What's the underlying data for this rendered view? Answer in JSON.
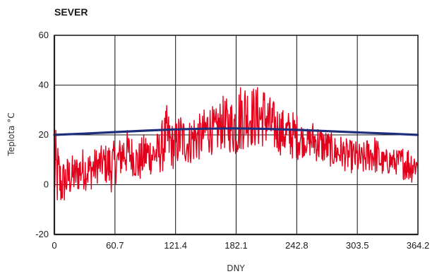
{
  "chart_data": {
    "type": "line",
    "title": "SEVER",
    "xlabel": "DNY",
    "ylabel": "Teplota °C",
    "xlim": [
      0,
      364.2
    ],
    "ylim": [
      -20,
      60
    ],
    "x_ticks": [
      "0",
      "60.7",
      "121.4",
      "182.1",
      "242.8",
      "303.5",
      "364.2"
    ],
    "y_ticks": [
      "60",
      "40",
      "20",
      "0",
      "-20"
    ],
    "grid": true,
    "legend": "none",
    "colors": {
      "series_red": "#e3001b",
      "series_blue": "#1d2f7a",
      "grid": "#222222",
      "axis": "#222222"
    },
    "series": [
      {
        "style": "daily-noisy",
        "color": "#e3001b",
        "x_step": 7,
        "x": [
          0,
          7,
          14,
          21,
          28,
          35,
          42,
          49,
          56,
          63,
          70,
          77,
          84,
          91,
          98,
          105,
          112,
          119,
          126,
          133,
          140,
          147,
          154,
          161,
          168,
          175,
          182,
          189,
          196,
          203,
          210,
          217,
          224,
          231,
          238,
          245,
          252,
          259,
          266,
          273,
          280,
          287,
          294,
          301,
          308,
          315,
          322,
          329,
          336,
          343,
          350,
          357,
          364
        ],
        "min": [
          -12,
          -10,
          -6,
          -4,
          -2,
          -3,
          0,
          2,
          -4,
          2,
          3,
          4,
          0,
          3,
          4,
          4,
          6,
          6,
          8,
          8,
          8,
          10,
          12,
          12,
          14,
          13,
          10,
          14,
          15,
          14,
          15,
          13,
          12,
          11,
          10,
          10,
          12,
          10,
          8,
          8,
          6,
          6,
          5,
          4,
          3,
          5,
          4,
          3,
          4,
          4,
          2,
          0,
          4
        ],
        "max": [
          24,
          10,
          12,
          12,
          15,
          14,
          15,
          16,
          18,
          17,
          24,
          20,
          17,
          22,
          20,
          22,
          32,
          24,
          30,
          25,
          30,
          28,
          34,
          30,
          36,
          34,
          38,
          44,
          40,
          40,
          40,
          35,
          32,
          30,
          30,
          28,
          22,
          26,
          24,
          22,
          20,
          20,
          18,
          18,
          16,
          20,
          20,
          14,
          15,
          14,
          16,
          16,
          12
        ]
      },
      {
        "style": "smooth",
        "color": "#1d2f7a",
        "x": [
          0,
          30,
          60,
          91,
          121,
          152,
          182,
          213,
          243,
          274,
          304,
          335,
          364
        ],
        "values": [
          20,
          20.5,
          21.1,
          21.7,
          22.2,
          22.5,
          22.6,
          22.4,
          22.0,
          21.5,
          21.0,
          20.5,
          20
        ]
      }
    ]
  }
}
